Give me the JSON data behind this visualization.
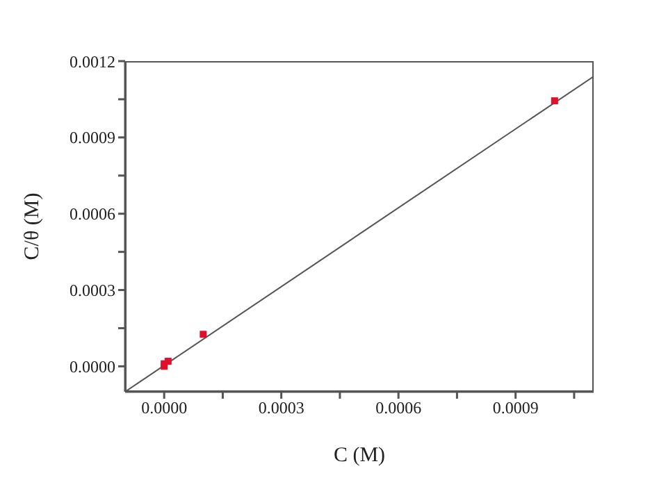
{
  "chart_data": {
    "type": "scatter",
    "xlabel": "C (M)",
    "ylabel": "C/θ (M)",
    "xlim": [
      -0.0001,
      0.0011
    ],
    "ylim": [
      -0.0001,
      0.0012
    ],
    "xticks": [
      {
        "value": 0,
        "label": "0.0000"
      },
      {
        "value": 0.00015,
        "label": null
      },
      {
        "value": 0.0003,
        "label": "0.0003"
      },
      {
        "value": 0.00045,
        "label": null
      },
      {
        "value": 0.0006,
        "label": "0.0006"
      },
      {
        "value": 0.00075,
        "label": null
      },
      {
        "value": 0.0009,
        "label": "0.0009"
      },
      {
        "value": 0.00105,
        "label": null
      }
    ],
    "yticks": [
      {
        "value": 0,
        "label": "0.0000"
      },
      {
        "value": 0.00015,
        "label": null
      },
      {
        "value": 0.0003,
        "label": "0.0003"
      },
      {
        "value": 0.00045,
        "label": null
      },
      {
        "value": 0.0006,
        "label": "0.0006"
      },
      {
        "value": 0.00075,
        "label": null
      },
      {
        "value": 0.0009,
        "label": "0.0009"
      },
      {
        "value": 0.00105,
        "label": null
      },
      {
        "value": 0.0012,
        "label": "0.0012"
      }
    ],
    "grid": false,
    "legend": false,
    "marker": "square",
    "series": [
      {
        "color": "#e0102a",
        "x": [
          0,
          0,
          1e-05,
          0.0001,
          0.001
        ],
        "values": [
          0,
          1e-05,
          2e-05,
          0.000126,
          0.001044
        ]
      },
      {
        "type": "line",
        "color": "#555555",
        "marker": "none",
        "x": [
          -0.0001,
          0.0011
        ],
        "values": [
          -0.0001,
          0.00114
        ]
      }
    ]
  }
}
